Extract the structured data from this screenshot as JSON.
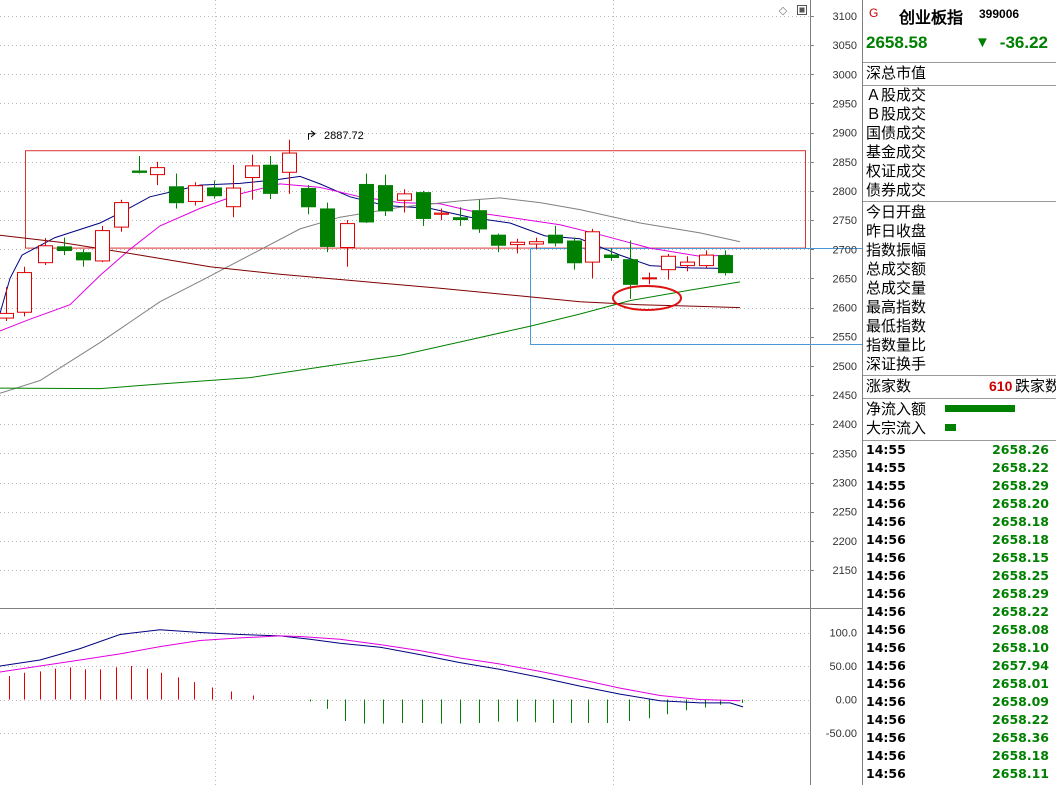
{
  "header": {
    "marker": "G",
    "name": "创业板指",
    "code": "399006",
    "price": "2658.58",
    "change_arrow": "▼",
    "change": "-36.22",
    "price_color": "#008000",
    "marker_color": "#cc0000"
  },
  "fields": {
    "total_market_value": "深总市值",
    "group1": [
      "Ａ股成交",
      "Ｂ股成交",
      "国债成交",
      "基金成交",
      "权证成交",
      "债券成交"
    ],
    "group2": [
      "今日开盘",
      "昨日收盘",
      "指数振幅",
      "总成交额",
      "总成交量",
      "最高指数",
      "最低指数",
      "指数量比",
      "深证换手"
    ],
    "advancers_label": "涨家数",
    "decliners_count": "610",
    "decliners_label": "跌家数",
    "net_inflow_label": "净流入额",
    "block_inflow_label": "大宗流入",
    "net_inflow_ratio": 0.7,
    "block_inflow_ratio": 0.11
  },
  "ticks": [
    {
      "time": "14:55",
      "price": "2658.26"
    },
    {
      "time": "14:55",
      "price": "2658.22"
    },
    {
      "time": "14:55",
      "price": "2658.29"
    },
    {
      "time": "14:56",
      "price": "2658.20"
    },
    {
      "time": "14:56",
      "price": "2658.18"
    },
    {
      "time": "14:56",
      "price": "2658.18"
    },
    {
      "time": "14:56",
      "price": "2658.15"
    },
    {
      "time": "14:56",
      "price": "2658.25"
    },
    {
      "time": "14:56",
      "price": "2658.29"
    },
    {
      "time": "14:56",
      "price": "2658.22"
    },
    {
      "time": "14:56",
      "price": "2658.08"
    },
    {
      "time": "14:56",
      "price": "2658.10"
    },
    {
      "time": "14:56",
      "price": "2657.94"
    },
    {
      "time": "14:56",
      "price": "2658.01"
    },
    {
      "time": "14:56",
      "price": "2658.09"
    },
    {
      "time": "14:56",
      "price": "2658.22"
    },
    {
      "time": "14:56",
      "price": "2658.36"
    },
    {
      "time": "14:56",
      "price": "2658.18"
    },
    {
      "time": "14:56",
      "price": "2658.11"
    }
  ],
  "chart_data": [
    {
      "type": "candlestick",
      "title": "",
      "ylim": [
        2100,
        3100
      ],
      "yticks": [
        3100,
        3050,
        3000,
        2950,
        2900,
        2850,
        2800,
        2750,
        2700,
        2650,
        2600,
        2550,
        2500,
        2450,
        2400,
        2350,
        2300,
        2250,
        2200,
        2150
      ],
      "high_annotation": "2887.72",
      "up_color": "#e00000",
      "down_color": "#008000",
      "candles": [
        {
          "o": 2582,
          "h": 2635,
          "l": 2577,
          "c": 2590
        },
        {
          "o": 2592,
          "h": 2670,
          "l": 2585,
          "c": 2660
        },
        {
          "o": 2677,
          "h": 2719,
          "l": 2673,
          "c": 2706
        },
        {
          "o": 2705,
          "h": 2720,
          "l": 2690,
          "c": 2697
        },
        {
          "o": 2695,
          "h": 2700,
          "l": 2670,
          "c": 2681
        },
        {
          "o": 2680,
          "h": 2740,
          "l": 2678,
          "c": 2732
        },
        {
          "o": 2738,
          "h": 2785,
          "l": 2730,
          "c": 2780
        },
        {
          "o": 2835,
          "h": 2860,
          "l": 2830,
          "c": 2831
        },
        {
          "o": 2828,
          "h": 2850,
          "l": 2810,
          "c": 2840
        },
        {
          "o": 2808,
          "h": 2830,
          "l": 2770,
          "c": 2779
        },
        {
          "o": 2782,
          "h": 2815,
          "l": 2775,
          "c": 2809
        },
        {
          "o": 2806,
          "h": 2818,
          "l": 2787,
          "c": 2791
        },
        {
          "o": 2773,
          "h": 2845,
          "l": 2755,
          "c": 2805
        },
        {
          "o": 2823,
          "h": 2862,
          "l": 2785,
          "c": 2843
        },
        {
          "o": 2845,
          "h": 2860,
          "l": 2786,
          "c": 2795
        },
        {
          "o": 2832,
          "h": 2887.72,
          "l": 2795,
          "c": 2865
        },
        {
          "o": 2805,
          "h": 2810,
          "l": 2760,
          "c": 2772
        },
        {
          "o": 2770,
          "h": 2780,
          "l": 2695,
          "c": 2704
        },
        {
          "o": 2703,
          "h": 2750,
          "l": 2670,
          "c": 2744
        },
        {
          "o": 2812,
          "h": 2830,
          "l": 2745,
          "c": 2746
        },
        {
          "o": 2810,
          "h": 2828,
          "l": 2757,
          "c": 2765
        },
        {
          "o": 2784,
          "h": 2803,
          "l": 2763,
          "c": 2795
        },
        {
          "o": 2798,
          "h": 2800,
          "l": 2740,
          "c": 2752
        },
        {
          "o": 2760,
          "h": 2770,
          "l": 2750,
          "c": 2762
        },
        {
          "o": 2755,
          "h": 2772,
          "l": 2740,
          "c": 2750
        },
        {
          "o": 2767,
          "h": 2785,
          "l": 2728,
          "c": 2734
        },
        {
          "o": 2725,
          "h": 2727,
          "l": 2695,
          "c": 2706
        },
        {
          "o": 2708,
          "h": 2718,
          "l": 2693,
          "c": 2712
        },
        {
          "o": 2709,
          "h": 2720,
          "l": 2700,
          "c": 2713
        },
        {
          "o": 2725,
          "h": 2740,
          "l": 2705,
          "c": 2710
        },
        {
          "o": 2715,
          "h": 2720,
          "l": 2665,
          "c": 2676
        },
        {
          "o": 2678,
          "h": 2735,
          "l": 2650,
          "c": 2730
        },
        {
          "o": 2691,
          "h": 2702,
          "l": 2680,
          "c": 2685
        },
        {
          "o": 2683,
          "h": 2715,
          "l": 2615,
          "c": 2639
        },
        {
          "o": 2650,
          "h": 2660,
          "l": 2640,
          "c": 2651
        },
        {
          "o": 2665,
          "h": 2692,
          "l": 2648,
          "c": 2688
        },
        {
          "o": 2672,
          "h": 2688,
          "l": 2662,
          "c": 2678
        },
        {
          "o": 2672,
          "h": 2698,
          "l": 2668,
          "c": 2690
        },
        {
          "o": 2690,
          "h": 2698,
          "l": 2655,
          "c": 2659
        }
      ],
      "moving_averages": [
        {
          "color": "#000080",
          "values": [
            [
              0,
              2590
            ],
            [
              10,
              2650
            ],
            [
              22,
              2690
            ],
            [
              55,
              2720
            ],
            [
              100,
              2745
            ],
            [
              120,
              2762
            ],
            [
              150,
              2790
            ],
            [
              200,
              2810
            ],
            [
              240,
              2813
            ],
            [
              280,
              2820
            ],
            [
              300,
              2825
            ],
            [
              320,
              2812
            ],
            [
              350,
              2790
            ],
            [
              385,
              2775
            ],
            [
              430,
              2770
            ],
            [
              470,
              2755
            ],
            [
              510,
              2745
            ],
            [
              545,
              2723
            ],
            [
              580,
              2718
            ],
            [
              620,
              2690
            ],
            [
              650,
              2672
            ],
            [
              690,
              2668
            ],
            [
              730,
              2667
            ]
          ]
        },
        {
          "color": "#e000e0",
          "values": [
            [
              0,
              2560
            ],
            [
              30,
              2580
            ],
            [
              70,
              2605
            ],
            [
              100,
              2655
            ],
            [
              130,
              2700
            ],
            [
              160,
              2740
            ],
            [
              200,
              2770
            ],
            [
              240,
              2795
            ],
            [
              280,
              2812
            ],
            [
              320,
              2806
            ],
            [
              360,
              2790
            ],
            [
              400,
              2780
            ],
            [
              440,
              2778
            ],
            [
              480,
              2762
            ],
            [
              520,
              2752
            ],
            [
              560,
              2742
            ],
            [
              600,
              2725
            ],
            [
              650,
              2702
            ],
            [
              700,
              2688
            ],
            [
              730,
              2690
            ]
          ]
        },
        {
          "color": "#808080",
          "values": [
            [
              0,
              2453
            ],
            [
              40,
              2475
            ],
            [
              100,
              2540
            ],
            [
              160,
              2610
            ],
            [
              200,
              2645
            ],
            [
              250,
              2690
            ],
            [
              300,
              2735
            ],
            [
              340,
              2755
            ],
            [
              400,
              2772
            ],
            [
              460,
              2783
            ],
            [
              500,
              2788
            ],
            [
              540,
              2780
            ],
            [
              580,
              2768
            ],
            [
              640,
              2745
            ],
            [
              700,
              2728
            ],
            [
              740,
              2713
            ]
          ]
        },
        {
          "color": "#008000",
          "values": [
            [
              0,
              2462
            ],
            [
              100,
              2461
            ],
            [
              160,
              2469
            ],
            [
              250,
              2480
            ],
            [
              320,
              2498
            ],
            [
              400,
              2518
            ],
            [
              470,
              2545
            ],
            [
              530,
              2568
            ],
            [
              580,
              2589
            ],
            [
              630,
              2612
            ],
            [
              690,
              2630
            ],
            [
              740,
              2644
            ]
          ]
        },
        {
          "color": "#800000",
          "values": [
            [
              0,
              2724
            ],
            [
              60,
              2712
            ],
            [
              140,
              2690
            ],
            [
              210,
              2670
            ],
            [
              280,
              2657
            ],
            [
              360,
              2645
            ],
            [
              440,
              2633
            ],
            [
              520,
              2620
            ],
            [
              580,
              2610
            ],
            [
              640,
              2605
            ],
            [
              700,
              2602
            ],
            [
              740,
              2600
            ]
          ]
        }
      ],
      "range_box": {
        "x0": 25,
        "x1": 805,
        "top": 2869,
        "bottom": 2702,
        "color": "#dd3333"
      },
      "support_box": {
        "x0": 530,
        "top": 2702,
        "bottom": 2537,
        "color": "#4a98d8"
      },
      "marked_candle": 33
    },
    {
      "type": "macd",
      "ylim": [
        -70,
        125
      ],
      "yticks": [
        100.0,
        50.0,
        0.0,
        -50.0
      ],
      "ytick_labels": [
        "100.0",
        "50.00",
        "0.00",
        "-50.00"
      ],
      "dif_color": "#000080",
      "dea_color": "#e000e0",
      "up_color": "#e00000",
      "down_color": "#008000",
      "dif": [
        [
          0,
          50
        ],
        [
          40,
          59
        ],
        [
          80,
          76
        ],
        [
          120,
          97
        ],
        [
          160,
          104
        ],
        [
          200,
          100
        ],
        [
          240,
          97
        ],
        [
          280,
          95
        ],
        [
          310,
          90
        ],
        [
          340,
          84
        ],
        [
          380,
          78
        ],
        [
          420,
          67
        ],
        [
          460,
          55
        ],
        [
          500,
          45
        ],
        [
          540,
          33
        ],
        [
          580,
          20
        ],
        [
          620,
          8
        ],
        [
          660,
          -2
        ],
        [
          700,
          -5
        ],
        [
          730,
          -5
        ],
        [
          743,
          -11
        ]
      ],
      "dea": [
        [
          0,
          41
        ],
        [
          40,
          50
        ],
        [
          80,
          59
        ],
        [
          120,
          68
        ],
        [
          160,
          79
        ],
        [
          200,
          88
        ],
        [
          240,
          92
        ],
        [
          280,
          95
        ],
        [
          300,
          94
        ],
        [
          340,
          90
        ],
        [
          380,
          82
        ],
        [
          420,
          73
        ],
        [
          460,
          62
        ],
        [
          500,
          53
        ],
        [
          540,
          42
        ],
        [
          580,
          30
        ],
        [
          620,
          17
        ],
        [
          660,
          6
        ],
        [
          700,
          0
        ],
        [
          740,
          -2
        ]
      ],
      "histogram": [
        {
          "x": 9,
          "v": 35
        },
        {
          "x": 24,
          "v": 40
        },
        {
          "x": 40,
          "v": 42
        },
        {
          "x": 55,
          "v": 46
        },
        {
          "x": 70,
          "v": 48
        },
        {
          "x": 85,
          "v": 45
        },
        {
          "x": 100,
          "v": 45
        },
        {
          "x": 116,
          "v": 48
        },
        {
          "x": 131,
          "v": 50
        },
        {
          "x": 147,
          "v": 46
        },
        {
          "x": 161,
          "v": 40
        },
        {
          "x": 178,
          "v": 33
        },
        {
          "x": 194,
          "v": 26
        },
        {
          "x": 212,
          "v": 18
        },
        {
          "x": 231,
          "v": 12
        },
        {
          "x": 253,
          "v": 6
        },
        {
          "x": 310,
          "v": -3
        },
        {
          "x": 327,
          "v": -14
        },
        {
          "x": 345,
          "v": -32
        },
        {
          "x": 364,
          "v": -36
        },
        {
          "x": 383,
          "v": -36
        },
        {
          "x": 402,
          "v": -35
        },
        {
          "x": 422,
          "v": -35
        },
        {
          "x": 441,
          "v": -36
        },
        {
          "x": 460,
          "v": -36
        },
        {
          "x": 479,
          "v": -35
        },
        {
          "x": 498,
          "v": -33
        },
        {
          "x": 517,
          "v": -33
        },
        {
          "x": 535,
          "v": -34
        },
        {
          "x": 553,
          "v": -35
        },
        {
          "x": 571,
          "v": -35
        },
        {
          "x": 588,
          "v": -35
        },
        {
          "x": 607,
          "v": -35
        },
        {
          "x": 629,
          "v": -32
        },
        {
          "x": 649,
          "v": -28
        },
        {
          "x": 667,
          "v": -22
        },
        {
          "x": 686,
          "v": -16
        },
        {
          "x": 705,
          "v": -12
        },
        {
          "x": 720,
          "v": -8
        },
        {
          "x": 742,
          "v": -5
        }
      ]
    }
  ]
}
